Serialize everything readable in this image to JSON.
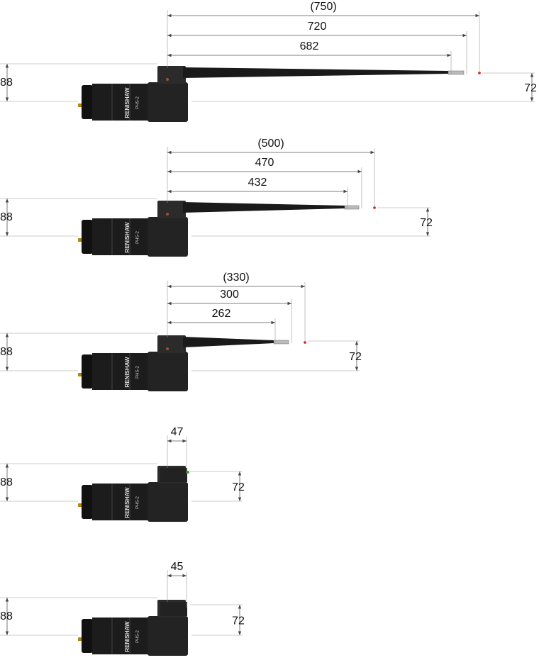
{
  "product": {
    "brand": "RENISHAW",
    "model": "PHS-2"
  },
  "figures": [
    {
      "length_labels": [
        "(750)",
        "720",
        "682"
      ],
      "height_left": "88",
      "height_right": "72"
    },
    {
      "length_labels": [
        "(500)",
        "470",
        "432"
      ],
      "height_left": "88",
      "height_right": "72"
    },
    {
      "length_labels": [
        "(330)",
        "300",
        "262"
      ],
      "height_left": "88",
      "height_right": "72"
    },
    {
      "length_labels": [
        "47"
      ],
      "height_left": "88",
      "height_right": "72"
    },
    {
      "length_labels": [
        "45"
      ],
      "height_left": "88",
      "height_right": "72"
    }
  ]
}
